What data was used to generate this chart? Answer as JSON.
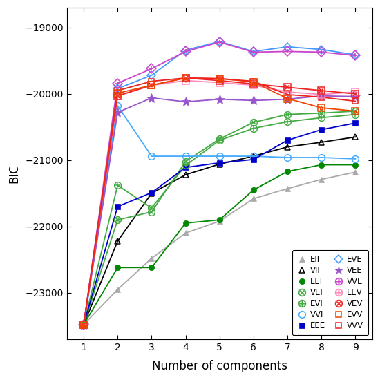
{
  "x": [
    1,
    2,
    3,
    4,
    5,
    6,
    7,
    8,
    9
  ],
  "series_data": {
    "EII": [
      -23480,
      -22950,
      -22480,
      -22100,
      -21920,
      -21580,
      -21430,
      -21290,
      -21180
    ],
    "VII": [
      -23480,
      -22220,
      -21500,
      -21220,
      -21060,
      -20940,
      -20800,
      -20730,
      -20650
    ],
    "EEI": [
      -23480,
      -22620,
      -22620,
      -21950,
      -21900,
      -21450,
      -21170,
      -21070,
      -21070
    ],
    "VEI": [
      -23480,
      -21900,
      -21780,
      -21020,
      -20680,
      -20430,
      -20310,
      -20290,
      -20260
    ],
    "EVI": [
      -23480,
      -21380,
      -21720,
      -21080,
      -20700,
      -20520,
      -20420,
      -20360,
      -20310
    ],
    "VVI": [
      -23480,
      -20180,
      -20940,
      -20940,
      -20940,
      -20940,
      -20960,
      -20960,
      -20980
    ],
    "EEE": [
      -23480,
      -21700,
      -21490,
      -21110,
      -21040,
      -20990,
      -20700,
      -20540,
      -20440
    ],
    "EVE": [
      -23480,
      -19920,
      -19720,
      -19340,
      -19210,
      -19360,
      -19290,
      -19330,
      -19410
    ],
    "VEE": [
      -23480,
      -20280,
      -20060,
      -20120,
      -20080,
      -20100,
      -20080,
      -20030,
      -20040
    ],
    "VVE": [
      -23480,
      -19840,
      -19620,
      -19360,
      -19220,
      -19370,
      -19360,
      -19370,
      -19420
    ],
    "EEV": [
      -23480,
      -20030,
      -19870,
      -19800,
      -19830,
      -19870,
      -19970,
      -20010,
      -19970
    ],
    "VEV": [
      -23480,
      -20030,
      -19870,
      -19760,
      -19800,
      -19850,
      -19900,
      -19950,
      -20000
    ],
    "EVV": [
      -23480,
      -19990,
      -19870,
      -19760,
      -19770,
      -19820,
      -20070,
      -20210,
      -20260
    ],
    "VVV": [
      -23480,
      -19950,
      -19810,
      -19760,
      -19770,
      -19810,
      -20010,
      -20050,
      -20110
    ]
  },
  "ylim": [
    -23700,
    -18700
  ],
  "yticks": [
    -23000,
    -22000,
    -21000,
    -20000,
    -19000
  ],
  "xlabel": "Number of components",
  "ylabel": "BIC"
}
